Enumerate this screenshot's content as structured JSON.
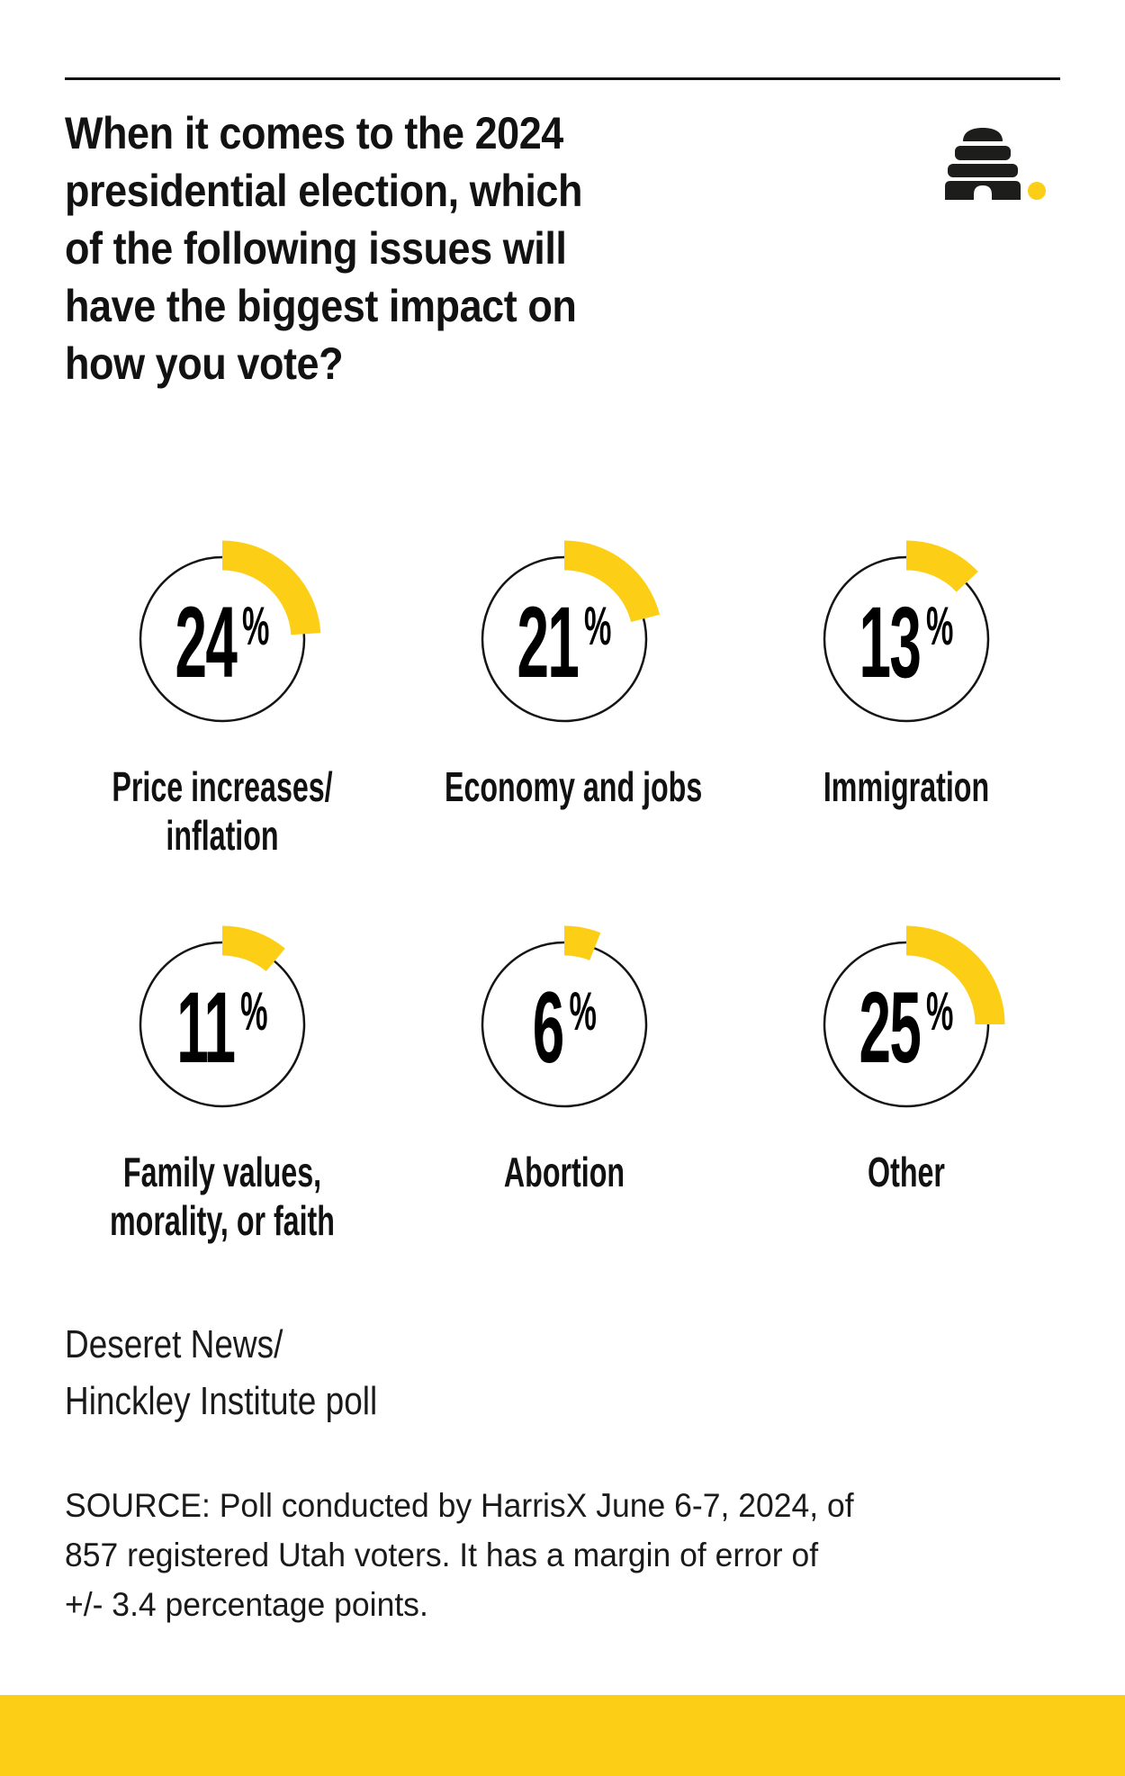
{
  "header": {
    "title": "When it comes to the 2024\npresidential election, which\nof the following issues will\nhave the biggest impact on\nhow you vote?",
    "logo": "deseret-news-beehive-logo"
  },
  "chart_data": {
    "type": "pie",
    "variant": "radial-progress-gauge-grid",
    "grid": {
      "rows": 2,
      "cols": 3
    },
    "unit": "%",
    "categories": [
      "Price increases/\ninflation",
      "Economy and jobs",
      "Immigration",
      "Family values,\nmorality, or faith",
      "Abortion",
      "Other"
    ],
    "values": [
      24,
      21,
      13,
      11,
      6,
      25
    ],
    "value_labels": [
      "24%",
      "21%",
      "13%",
      "11%",
      "6%",
      "25%"
    ],
    "start_angle_deg": 0,
    "direction": "clockwise",
    "accent_color": "#fccf16",
    "ring_color": "#141414",
    "legend": "none",
    "grid_lines": "off"
  },
  "footer": {
    "attribution": "Deseret News/\nHinckley Institute poll",
    "source": "SOURCE: Poll conducted by HarrisX June 6-7, 2024, of\n857 registered Utah voters. It has a margin of error of\n+/- 3.4 percentage points."
  },
  "colors": {
    "accent": "#fccf16",
    "text": "#111111",
    "background": "#ffffff"
  }
}
